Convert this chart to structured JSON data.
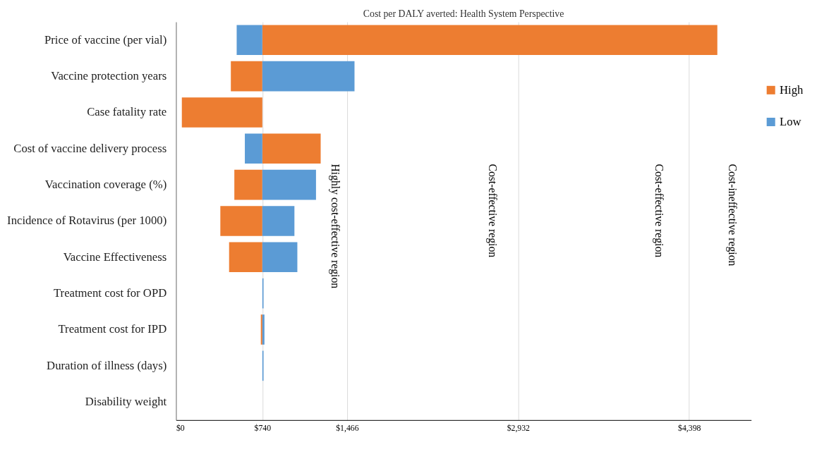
{
  "chart_data": {
    "type": "bar",
    "orientation": "horizontal",
    "title": "Cost per DALY averted: Health System Perspective",
    "categories": [
      "Price of vaccine (per vial)",
      "Vaccine protection years",
      "Case fatality rate",
      "Cost of vaccine delivery process",
      "Vaccination coverage (%)",
      "Incidence of Rotavirus  (per 1000)",
      "Vaccine Effectiveness",
      "Treatment cost for OPD",
      "Treatment cost for IPD",
      "Duration of illness  (days)",
      "Disability weight"
    ],
    "series": [
      {
        "name": "High",
        "color": "#ed7d31",
        "base": [
          740,
          740,
          740,
          740,
          740,
          740,
          740,
          null,
          740,
          null,
          null
        ],
        "values": [
          3900,
          -270,
          -690,
          500,
          -240,
          -360,
          -285,
          null,
          -13,
          null,
          null
        ]
      },
      {
        "name": "Low",
        "color": "#5b9bd5",
        "base": [
          740,
          740,
          null,
          740,
          740,
          740,
          740,
          740,
          740,
          740,
          null
        ],
        "values": [
          -220,
          790,
          null,
          -150,
          460,
          275,
          300,
          10,
          18,
          10,
          null
        ]
      }
    ],
    "xlim": [
      0,
      4930
    ],
    "xticks": [
      {
        "value": 0,
        "label": "$0"
      },
      {
        "value": 740,
        "label": "$740"
      },
      {
        "value": 1466,
        "label": "$1,466"
      },
      {
        "value": 2932,
        "label": "$2,932"
      },
      {
        "value": 4398,
        "label": "$4,398"
      }
    ],
    "grid": "x",
    "legend": "right",
    "annotations": [
      "Highly  cost-effective  region",
      "Cost-effective region",
      "Cost-effective region",
      "Cost-ineffective region"
    ]
  }
}
